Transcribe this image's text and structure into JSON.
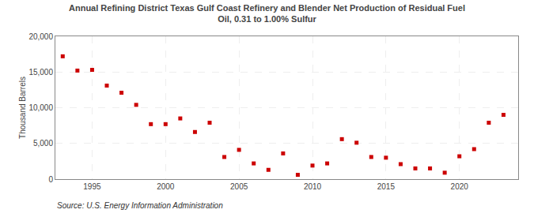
{
  "chart_data": {
    "type": "scatter",
    "title": "Annual Refining District Texas Gulf Coast Refinery and Blender Net Production of Residual Fuel\nOil, 0.31 to 1.00% Sulfur",
    "ylabel": "Thousand Barrels",
    "annotations": [
      "Source: U.S. Energy Information Administration"
    ],
    "x": [
      1993,
      1994,
      1995,
      1996,
      1997,
      1998,
      1999,
      2000,
      2001,
      2002,
      2003,
      2004,
      2005,
      2006,
      2007,
      2008,
      2009,
      2010,
      2011,
      2012,
      2013,
      2014,
      2015,
      2016,
      2017,
      2018,
      2019,
      2020,
      2021,
      2022,
      2023
    ],
    "values": [
      17200,
      15200,
      15300,
      13100,
      12100,
      10400,
      7700,
      7700,
      8500,
      6600,
      7900,
      3100,
      4100,
      2200,
      1300,
      3600,
      600,
      1900,
      2200,
      5600,
      5100,
      3100,
      3000,
      2100,
      1500,
      1500,
      900,
      3200,
      4200,
      7900,
      9000
    ],
    "color": "#cc0000",
    "marker": "square",
    "xlim": [
      1992.5,
      2024
    ],
    "xticks": [
      1995,
      2000,
      2005,
      2010,
      2015,
      2020
    ],
    "ylim": [
      0,
      20000
    ],
    "yticks": [
      0,
      {
        "value": 5000,
        "label": "5,000"
      },
      {
        "value": 10000,
        "label": "10,000"
      },
      {
        "value": 15000,
        "label": "15,000"
      },
      {
        "value": 20000,
        "label": "20,000"
      }
    ],
    "grid": true
  }
}
